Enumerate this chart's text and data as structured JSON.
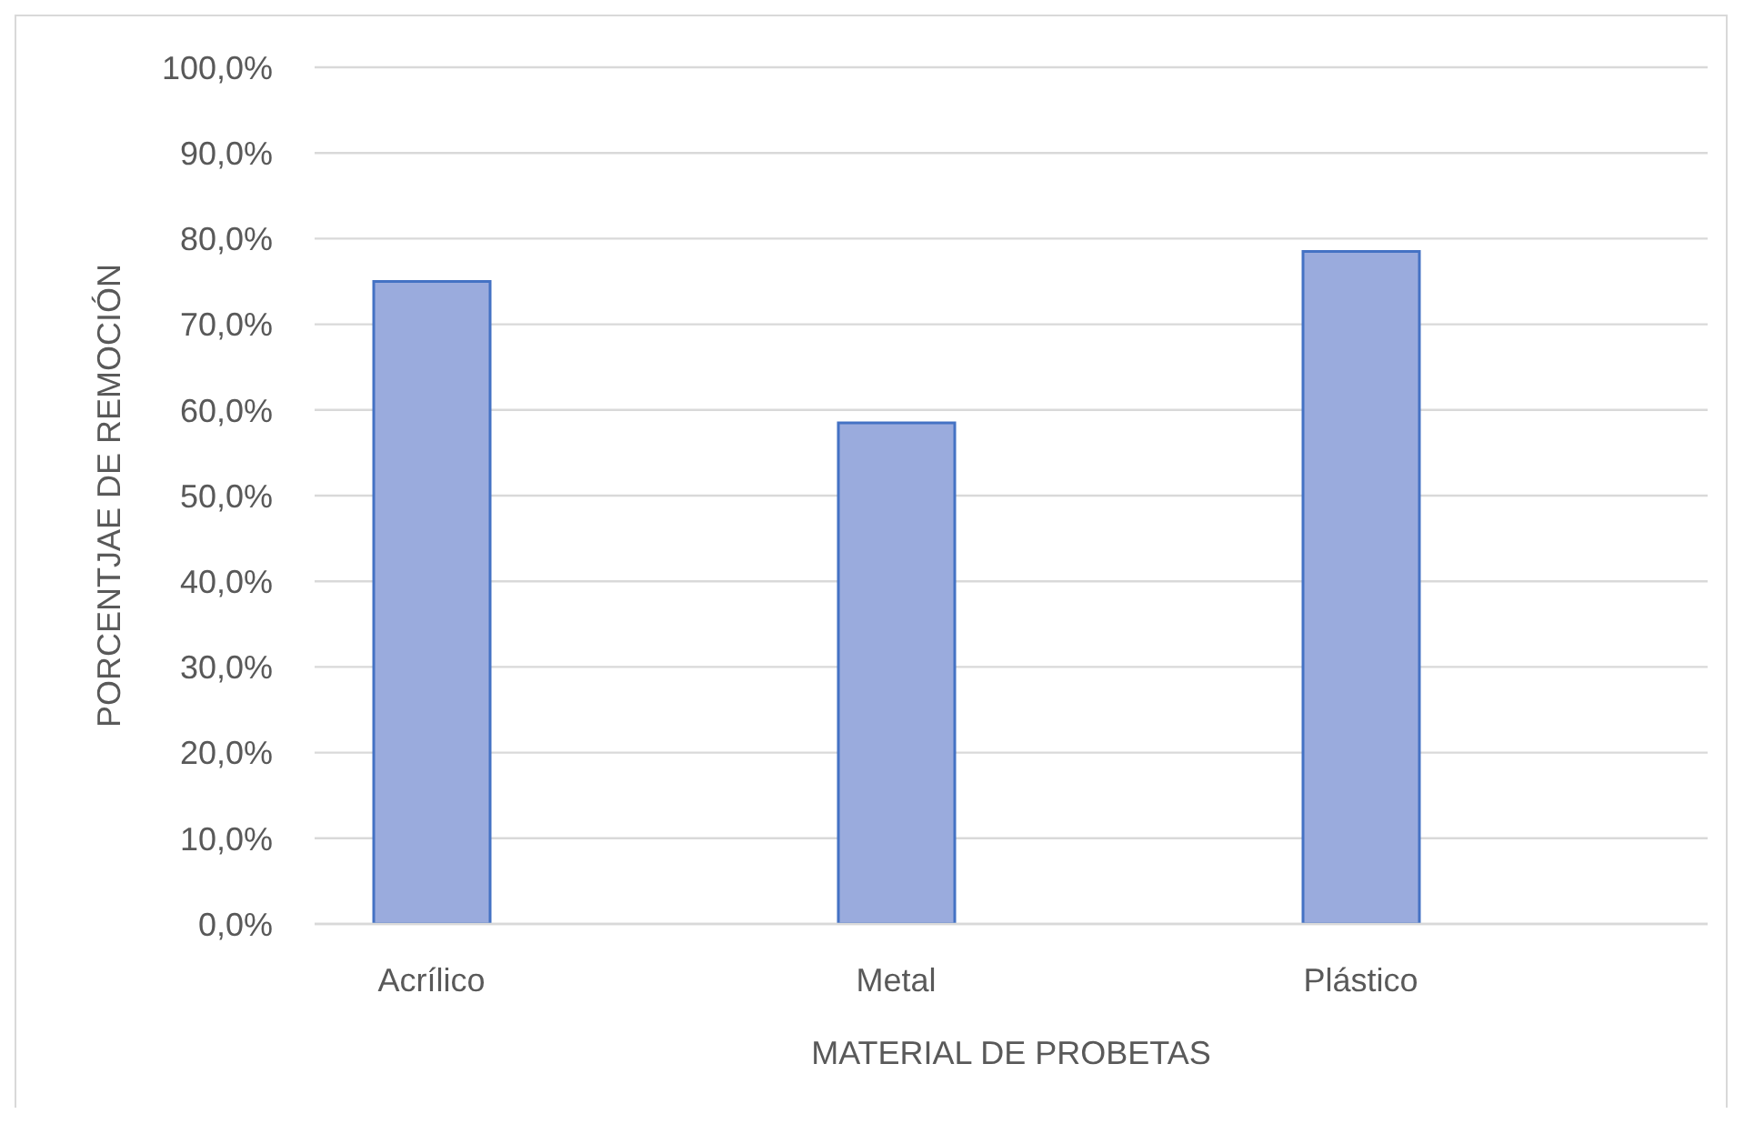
{
  "chart_data": {
    "type": "bar",
    "categories": [
      "Acrílico",
      "Metal",
      "Plástico"
    ],
    "values": [
      75,
      58.5,
      78.5
    ],
    "color": "#9aabdd",
    "xlabel": "MATERIAL DE PROBETAS",
    "ylabel": "PORCENTJAE DE REMOCIÓN",
    "ylim": [
      0,
      100
    ],
    "yticks": [
      {
        "value": 0,
        "label": "0,0%"
      },
      {
        "value": 10,
        "label": "10,0%"
      },
      {
        "value": 20,
        "label": "20,0%"
      },
      {
        "value": 30,
        "label": "30,0%"
      },
      {
        "value": 40,
        "label": "40,0%"
      },
      {
        "value": 50,
        "label": "50,0%"
      },
      {
        "value": 60,
        "label": "60,0%"
      },
      {
        "value": 70,
        "label": "70,0%"
      },
      {
        "value": 80,
        "label": "80,0%"
      },
      {
        "value": 90,
        "label": "90,0%"
      },
      {
        "value": 100,
        "label": "100,0%"
      }
    ],
    "grid": "y"
  }
}
